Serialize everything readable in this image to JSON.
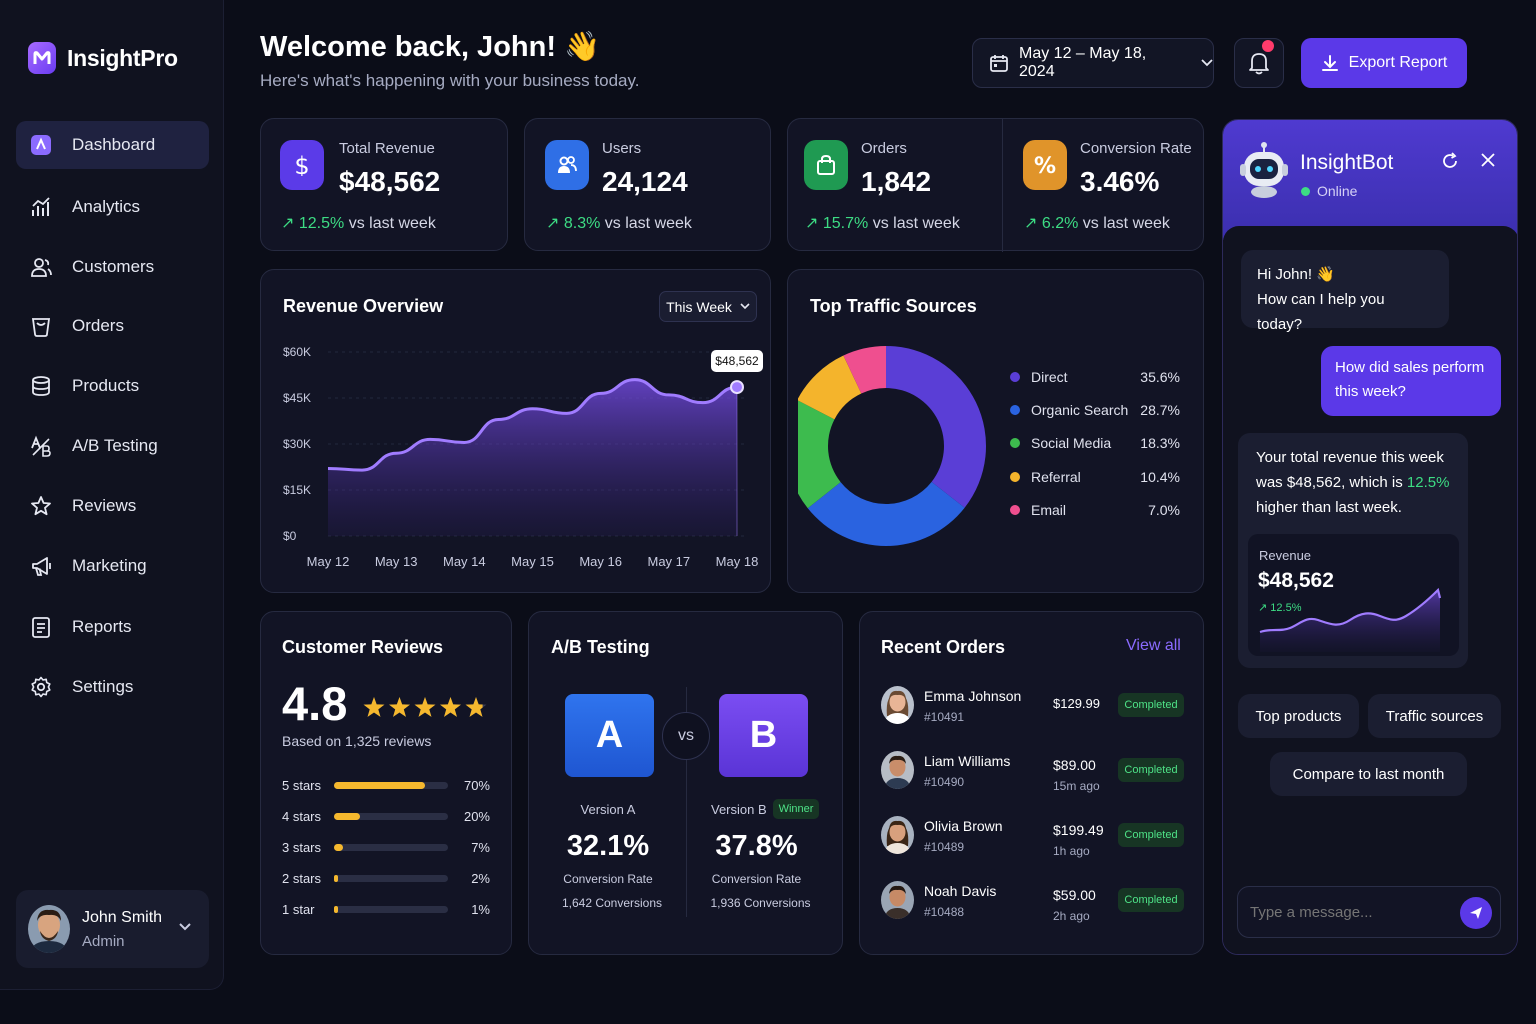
{
  "app": {
    "name": "InsightPro"
  },
  "nav": [
    {
      "label": "Dashboard",
      "icon": "dashboard-icon",
      "active": true
    },
    {
      "label": "Analytics",
      "icon": "analytics-icon"
    },
    {
      "label": "Customers",
      "icon": "customers-icon"
    },
    {
      "label": "Orders",
      "icon": "orders-icon"
    },
    {
      "label": "Products",
      "icon": "products-icon"
    },
    {
      "label": "A/B Testing",
      "icon": "ab-testing-icon"
    },
    {
      "label": "Reviews",
      "icon": "star-icon"
    },
    {
      "label": "Marketing",
      "icon": "megaphone-icon"
    },
    {
      "label": "Reports",
      "icon": "reports-icon"
    },
    {
      "label": "Settings",
      "icon": "gear-icon"
    }
  ],
  "user": {
    "name": "John Smith",
    "role": "Admin"
  },
  "header": {
    "welcome": "Welcome back, John! 👋",
    "subtitle": "Here's what's happening with your business today.",
    "date_range": "May 12 – May 18, 2024",
    "export_label": "Export Report"
  },
  "stats": [
    {
      "label": "Total Revenue",
      "value": "$48,562",
      "change": "12.5%",
      "suffix": "vs last week",
      "color": "#5b3be8",
      "icon": "dollar-icon"
    },
    {
      "label": "Users",
      "value": "24,124",
      "change": "8.3%",
      "suffix": "vs last week",
      "color": "#2f6fe6",
      "icon": "users-icon"
    },
    {
      "label": "Orders",
      "value": "1,842",
      "change": "15.7%",
      "suffix": "vs last week",
      "color": "#1f9a52",
      "icon": "shopping-bag-icon"
    },
    {
      "label": "Conversion Rate",
      "value": "3.46%",
      "change": "6.2%",
      "suffix": "vs last week",
      "color": "#e0942a",
      "icon": "percent-icon"
    }
  ],
  "revenue": {
    "title": "Revenue Overview",
    "period": "This Week",
    "tooltip": "$48,562",
    "chart_data": {
      "type": "area",
      "categories": [
        "May 12",
        "May 13",
        "May 14",
        "May 15",
        "May 16",
        "May 17",
        "May 18"
      ],
      "x": [
        0,
        0.5,
        1,
        1.5,
        2,
        2.5,
        3,
        3.5,
        4,
        4.5,
        5,
        5.5,
        6
      ],
      "values": [
        22000,
        21500,
        27000,
        31500,
        30500,
        38000,
        41500,
        40000,
        46500,
        51000,
        46000,
        43500,
        48562
      ],
      "yticks": [
        "$60K",
        "$45K",
        "$30K",
        "$15K",
        "$0"
      ],
      "ylim": [
        0,
        60000
      ]
    }
  },
  "traffic": {
    "title": "Top Traffic Sources",
    "chart_data": {
      "type": "pie",
      "labels": [
        "Direct",
        "Organic Search",
        "Social Media",
        "Referral",
        "Email"
      ],
      "values": [
        35.6,
        28.7,
        18.3,
        10.4,
        7.0
      ],
      "display": [
        "35.6%",
        "28.7%",
        "18.3%",
        "10.4%",
        "7.0%"
      ],
      "colors": [
        "#5a3ed6",
        "#2a63e0",
        "#3dbb4e",
        "#f4b42c",
        "#ef4f8f"
      ]
    }
  },
  "reviews": {
    "title": "Customer Reviews",
    "rating": "4.8",
    "based_on": "Based on 1,325 reviews",
    "chart_data": {
      "type": "bar",
      "categories": [
        "5 stars",
        "4 stars",
        "3 stars",
        "2 stars",
        "1 star"
      ],
      "values": [
        70,
        20,
        7,
        2,
        1
      ],
      "display": [
        "70%",
        "20%",
        "7%",
        "2%",
        "1%"
      ]
    }
  },
  "ab": {
    "title": "A/B Testing",
    "a": {
      "letter": "A",
      "label": "Version A",
      "rate": "32.1%",
      "rate_label": "Conversion Rate",
      "conversions": "1,642 Conversions"
    },
    "b": {
      "letter": "B",
      "label": "Version B",
      "rate": "37.8%",
      "rate_label": "Conversion Rate",
      "conversions": "1,936 Conversions"
    },
    "vs": "vs",
    "winner": "Winner"
  },
  "orders": {
    "title": "Recent Orders",
    "view_all": "View all",
    "items": [
      {
        "name": "Emma Johnson",
        "id": "#10491",
        "amount": "$129.99",
        "time": "",
        "status": "Completed"
      },
      {
        "name": "Liam Williams",
        "id": "#10490",
        "amount": "$89.00",
        "time": "15m ago",
        "status": "Completed"
      },
      {
        "name": "Olivia Brown",
        "id": "#10489",
        "amount": "$199.49",
        "time": "1h ago",
        "status": "Completed"
      },
      {
        "name": "Noah Davis",
        "id": "#10488",
        "amount": "$59.00",
        "time": "2h ago",
        "status": "Completed"
      }
    ]
  },
  "chat": {
    "name": "InsightBot",
    "status": "Online",
    "msg1_line1": "Hi John! 👋",
    "msg1_line2": "How can I help you today?",
    "user_msg": "How did sales perform this week?",
    "reply_pre": "Your total revenue this week was $48,562, which is",
    "reply_pct": "12.5%",
    "reply_post": "higher than last week.",
    "mini_label": "Revenue",
    "mini_value": "$48,562",
    "mini_change": "12.5%",
    "chip1": "Top products",
    "chip2": "Traffic sources",
    "chip3": "Compare to last month",
    "placeholder": "Type a message..."
  }
}
